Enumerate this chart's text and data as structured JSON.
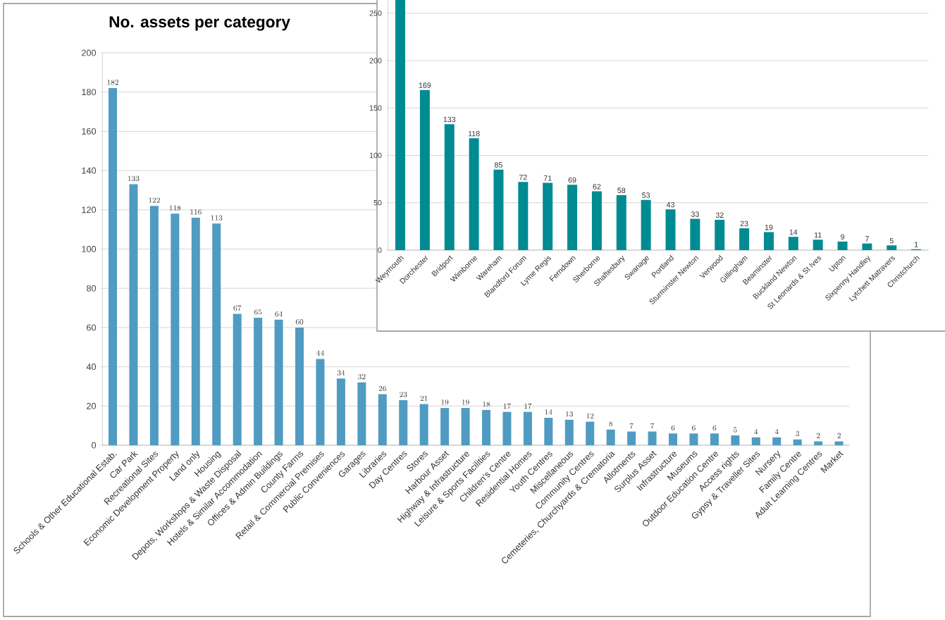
{
  "chart_data": [
    {
      "type": "bar",
      "title": "No. assets per category",
      "categories": [
        "Schools & Other Educational Estab.",
        "Car Park",
        "Recreational Sites",
        "Economic Development Property",
        "Land only",
        "Housing",
        "Depots, Workshops & Waste Disposal",
        "Hotels & Similar Accommodation",
        "Offices & Admin Buildings",
        "County Farms",
        "Retail & Commercial Premises",
        "Public Conveniences",
        "Garages",
        "Libraries",
        "Day Centres",
        "Stores",
        "Harbour Asset",
        "Highway & Infrastructure",
        "Leisure & Sports Facilities",
        "Children's Centre",
        "Residential Homes",
        "Youth Centres",
        "Miscellaneous",
        "Community Centres",
        "Cemeteries, Churchyards & Crematoria",
        "Allotments",
        "Surplus Asset",
        "Infrastructure",
        "Museums",
        "Outdoor Education Centre",
        "Access rights",
        "Gypsy & Traveller Sites",
        "Nursery",
        "Family Centre",
        "Adult Learning Centres",
        "Market"
      ],
      "values": [
        182,
        133,
        122,
        118,
        116,
        113,
        67,
        65,
        64,
        60,
        44,
        34,
        32,
        26,
        23,
        21,
        19,
        19,
        18,
        17,
        17,
        14,
        13,
        12,
        8,
        7,
        7,
        6,
        6,
        6,
        5,
        4,
        4,
        3,
        2,
        2
      ],
      "color": "#4f9bc2",
      "ylim": [
        0,
        200
      ],
      "yticks": [
        0,
        20,
        40,
        60,
        80,
        100,
        120,
        140,
        160,
        180,
        200
      ],
      "grid": "y",
      "data_labels": true
    },
    {
      "type": "bar",
      "categories": [
        "Weymouth",
        "Dorchester",
        "Bridport",
        "Wimborne",
        "Wareham",
        "Blandford Forum",
        "Lyme Regis",
        "Ferndown",
        "Sherborne",
        "Shaftesbury",
        "Swanage",
        "Portland",
        "Sturminster Newton",
        "Verwood",
        "Gillingham",
        "Beaminster",
        "Buckland Newton",
        "St Leonards & St Ives",
        "Upton",
        "Sixpenny Handley",
        "Lytchett Matravers",
        "Christchurch"
      ],
      "values": [
        264,
        169,
        133,
        118,
        85,
        72,
        71,
        69,
        62,
        58,
        53,
        43,
        33,
        32,
        23,
        19,
        14,
        11,
        9,
        7,
        5,
        1
      ],
      "value_labels": [
        null,
        "169",
        "133",
        "118",
        "85",
        "72",
        "71",
        "69",
        "62",
        "58",
        "53",
        "43",
        "33",
        "32",
        "23",
        "19",
        "14",
        "11",
        "9",
        "7",
        "5",
        "1"
      ],
      "color": "#008b93",
      "ylim": [
        0,
        264
      ],
      "yticks": [
        0,
        50,
        100,
        150,
        200,
        250
      ],
      "grid": "y"
    }
  ]
}
